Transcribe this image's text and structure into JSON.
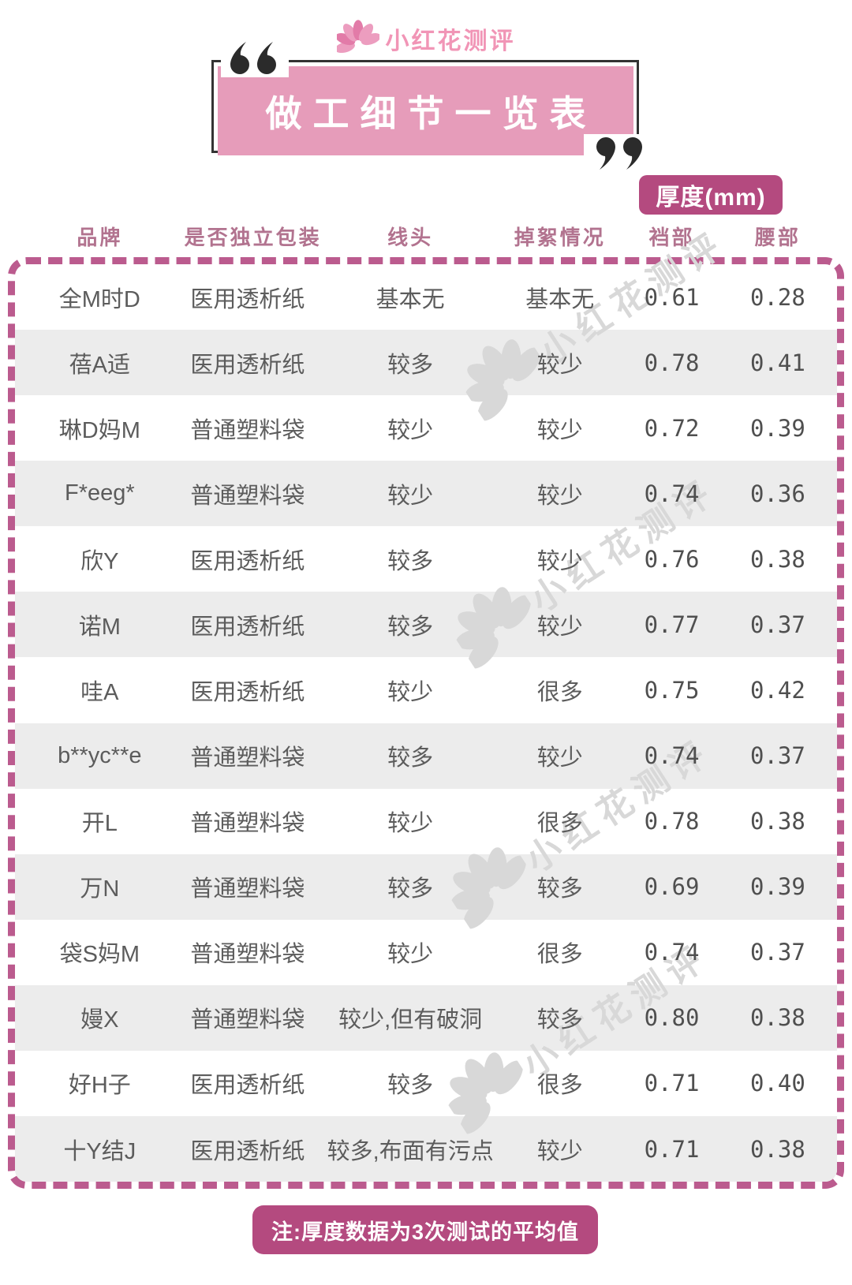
{
  "logo": {
    "text": "小红花测评"
  },
  "title": {
    "text": "做工细节一览表"
  },
  "thickness_badge": "厚度(mm)",
  "table": {
    "columns": [
      "品牌",
      "是否独立包装",
      "线头",
      "掉絮情况",
      "裆部",
      "腰部"
    ],
    "column_keys": [
      "brand",
      "packaging",
      "thread-ends",
      "lint-shedding",
      "crotch-thickness",
      "waist-thickness"
    ],
    "rows": [
      [
        "全M时D",
        "医用透析纸",
        "基本无",
        "基本无",
        "0.61",
        "0.28"
      ],
      [
        "蓓A适",
        "医用透析纸",
        "较多",
        "较少",
        "0.78",
        "0.41"
      ],
      [
        "琳D妈M",
        "普通塑料袋",
        "较少",
        "较少",
        "0.72",
        "0.39"
      ],
      [
        "F*eeg*",
        "普通塑料袋",
        "较少",
        "较少",
        "0.74",
        "0.36"
      ],
      [
        "欣Y",
        "医用透析纸",
        "较多",
        "较少",
        "0.76",
        "0.38"
      ],
      [
        "诺M",
        "医用透析纸",
        "较多",
        "较少",
        "0.77",
        "0.37"
      ],
      [
        "哇A",
        "医用透析纸",
        "较少",
        "很多",
        "0.75",
        "0.42"
      ],
      [
        "b**yc**e",
        "普通塑料袋",
        "较多",
        "较少",
        "0.74",
        "0.37"
      ],
      [
        "开L",
        "普通塑料袋",
        "较少",
        "很多",
        "0.78",
        "0.38"
      ],
      [
        "万N",
        "普通塑料袋",
        "较多",
        "较多",
        "0.69",
        "0.39"
      ],
      [
        "袋S妈M",
        "普通塑料袋",
        "较少",
        "很多",
        "0.74",
        "0.37"
      ],
      [
        "嫚X",
        "普通塑料袋",
        "较少,但有破洞",
        "较多",
        "0.80",
        "0.38"
      ],
      [
        "好H子",
        "医用透析纸",
        "较多",
        "很多",
        "0.71",
        "0.40"
      ],
      [
        "十Y结J",
        "医用透析纸",
        "较多,布面有污点",
        "较少",
        "0.71",
        "0.38"
      ]
    ]
  },
  "note": "注:厚度数据为3次测试的平均值",
  "watermark": {
    "text": "小红花测评"
  },
  "colors": {
    "title_pink": "#e69cba",
    "badge_bg": "#b44a7f",
    "header_text": "#b2738f",
    "dashed_border": "#bb5b8e",
    "frame_dark": "#333333",
    "row_alt": "#ececec",
    "watermark_gray": "#d8d8d8",
    "body_text": "#5c5c5c",
    "logo_pink": "#f195b6"
  },
  "chart_data": {
    "type": "table",
    "title": "做工细节一览表",
    "unit_header": "厚度(mm)",
    "unit_applies_to": [
      "裆部",
      "腰部"
    ],
    "columns": [
      "品牌",
      "是否独立包装",
      "线头",
      "掉絮情况",
      "裆部",
      "腰部"
    ],
    "rows": [
      [
        "全M时D",
        "医用透析纸",
        "基本无",
        "基本无",
        0.61,
        0.28
      ],
      [
        "蓓A适",
        "医用透析纸",
        "较多",
        "较少",
        0.78,
        0.41
      ],
      [
        "琳D妈M",
        "普通塑料袋",
        "较少",
        "较少",
        0.72,
        0.39
      ],
      [
        "F*eeg*",
        "普通塑料袋",
        "较少",
        "较少",
        0.74,
        0.36
      ],
      [
        "欣Y",
        "医用透析纸",
        "较多",
        "较少",
        0.76,
        0.38
      ],
      [
        "诺M",
        "医用透析纸",
        "较多",
        "较少",
        0.77,
        0.37
      ],
      [
        "哇A",
        "医用透析纸",
        "较少",
        "很多",
        0.75,
        0.42
      ],
      [
        "b**yc**e",
        "普通塑料袋",
        "较多",
        "较少",
        0.74,
        0.37
      ],
      [
        "开L",
        "普通塑料袋",
        "较少",
        "很多",
        0.78,
        0.38
      ],
      [
        "万N",
        "普通塑料袋",
        "较多",
        "较多",
        0.69,
        0.39
      ],
      [
        "袋S妈M",
        "普通塑料袋",
        "较少",
        "很多",
        0.74,
        0.37
      ],
      [
        "嫚X",
        "普通塑料袋",
        "较少,但有破洞",
        "较多",
        0.8,
        0.38
      ],
      [
        "好H子",
        "医用透析纸",
        "较多",
        "很多",
        0.71,
        0.4
      ],
      [
        "十Y结J",
        "医用透析纸",
        "较多,布面有污点",
        "较少",
        0.71,
        0.38
      ]
    ],
    "note": "注:厚度数据为3次测试的平均值"
  }
}
